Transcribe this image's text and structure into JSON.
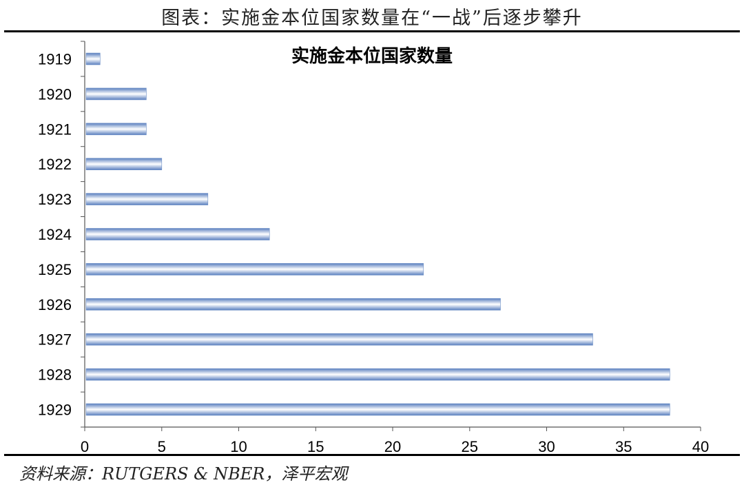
{
  "caption": "图表：实施金本位国家数量在“一战”后逐步攀升",
  "source": "资料来源：RUTGERS & NBER，泽平宏观",
  "bar_color": "#6d8fc6",
  "chart_data": {
    "type": "bar",
    "orientation": "horizontal",
    "title": "实施金本位国家数量",
    "categories": [
      "1919",
      "1920",
      "1921",
      "1922",
      "1923",
      "1924",
      "1925",
      "1926",
      "1927",
      "1928",
      "1929"
    ],
    "values": [
      1,
      4,
      4,
      5,
      8,
      12,
      22,
      27,
      33,
      38,
      38
    ],
    "xlim": [
      0,
      40
    ],
    "xticks": [
      "0",
      "5",
      "10",
      "15",
      "20",
      "25",
      "30",
      "35",
      "40"
    ],
    "xlabel": "",
    "ylabel": "",
    "grid": false,
    "legend": "none"
  }
}
